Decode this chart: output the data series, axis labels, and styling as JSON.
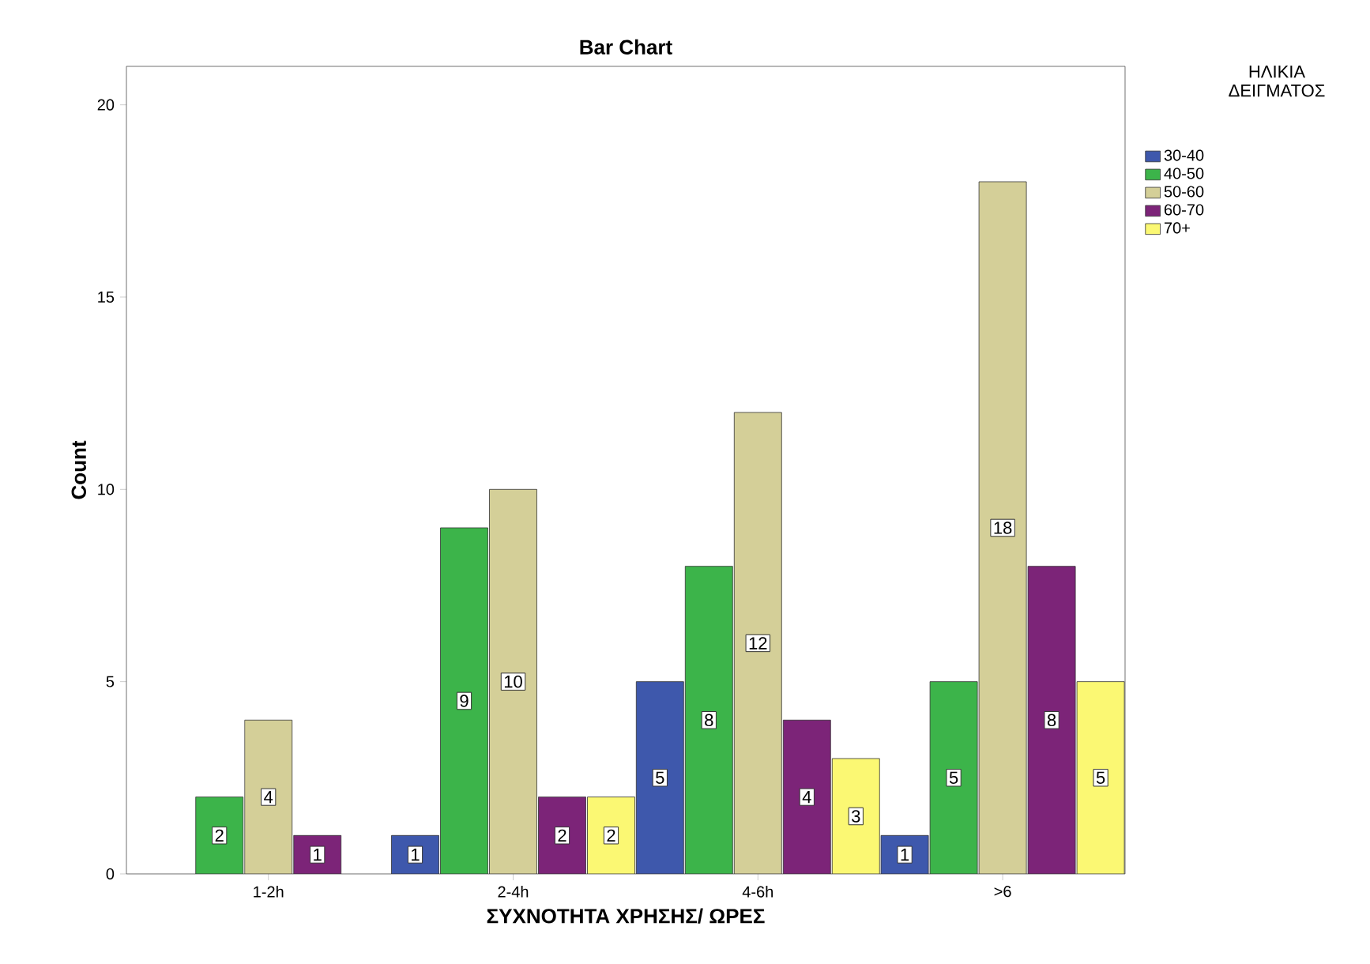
{
  "chart_data": {
    "type": "bar",
    "title": "Bar Chart",
    "xlabel": "ΣΥΧΝΟΤΗΤΑ ΧΡΗΣΗΣ/ ΩΡΕΣ",
    "ylabel": "Count",
    "legend_title": "ΗΛΙΚΙΑ ΔΕΙΓΜΑΤΟΣ",
    "categories": [
      "1-2h",
      "2-4h",
      "4-6h",
      ">6"
    ],
    "series": [
      {
        "name": "30-40",
        "color": "#3e58ac",
        "values": [
          null,
          1,
          5,
          1
        ]
      },
      {
        "name": "40-50",
        "color": "#3cb44a",
        "values": [
          2,
          9,
          8,
          5
        ]
      },
      {
        "name": "50-60",
        "color": "#d4cf98",
        "values": [
          4,
          10,
          12,
          18
        ]
      },
      {
        "name": "60-70",
        "color": "#7c2478",
        "values": [
          1,
          2,
          4,
          8
        ]
      },
      {
        "name": "70+",
        "color": "#fbf873",
        "values": [
          null,
          2,
          3,
          5
        ]
      }
    ],
    "ylim": [
      0,
      21
    ],
    "yticks": [
      0,
      5,
      10,
      15,
      20
    ],
    "grid": false,
    "legend": "top right",
    "data_labels": true
  }
}
